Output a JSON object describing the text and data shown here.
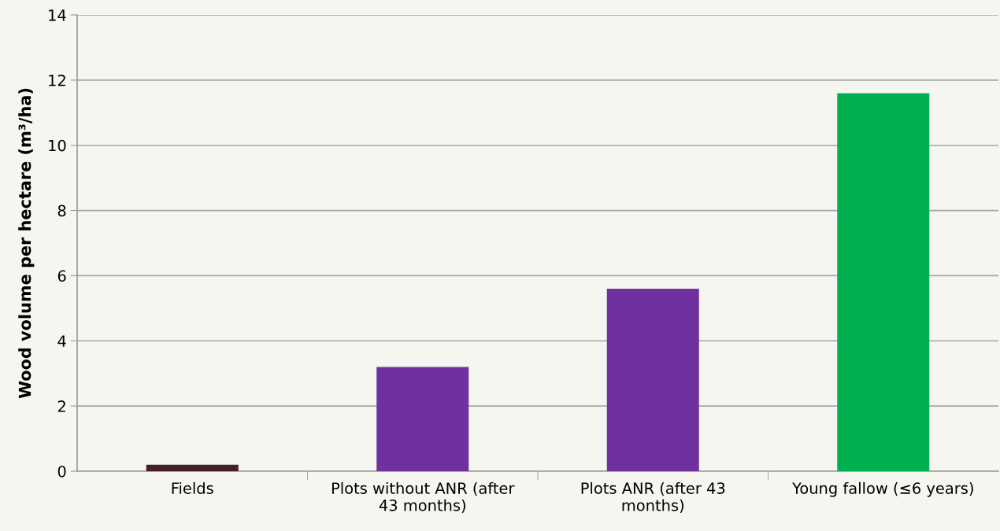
{
  "chart_data": {
    "type": "bar",
    "ylabel": "Wood volume per hectare (m³/ha)",
    "categories": [
      "Fields",
      "Plots without ANR (after\n43 months)",
      "Plots ANR (after 43\nmonths)",
      "Young fallow (≤6 years)"
    ],
    "values": [
      0.2,
      3.2,
      5.6,
      11.6
    ],
    "colors": [
      "#45202a",
      "#7030a0",
      "#7030a0",
      "#00b050"
    ],
    "ylim": [
      0,
      14
    ],
    "yticks": [
      0,
      2,
      4,
      6,
      8,
      10,
      12,
      14
    ],
    "grid": "y",
    "legend": false
  }
}
